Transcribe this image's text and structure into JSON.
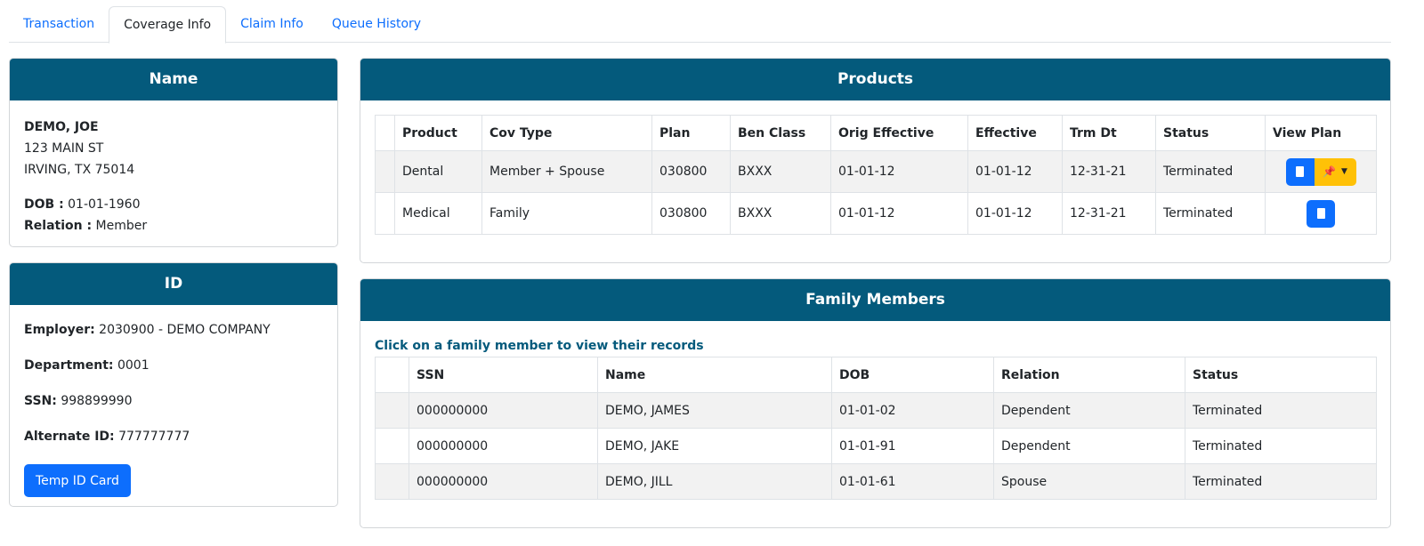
{
  "tabs": [
    "Transaction",
    "Coverage Info",
    "Claim Info",
    "Queue History"
  ],
  "active_tab": "Coverage Info",
  "name_card": {
    "title": "Name",
    "name": "DEMO, JOE",
    "address1": "123 MAIN ST",
    "address2": "IRVING, TX 75014",
    "dob_label": "DOB :",
    "dob": "01-01-1960",
    "relation_label": "Relation :",
    "relation": "Member"
  },
  "id_card": {
    "title": "ID",
    "fields": [
      {
        "label": "Employer:",
        "value": "2030900 - DEMO COMPANY"
      },
      {
        "label": "Department:",
        "value": "0001"
      },
      {
        "label": "SSN:",
        "value": "998899990"
      },
      {
        "label": "Alternate ID:",
        "value": "777777777"
      }
    ],
    "button": "Temp ID Card"
  },
  "products": {
    "title": "Products",
    "columns": [
      "Product",
      "Cov Type",
      "Plan",
      "Ben Class",
      "Orig Effective",
      "Effective",
      "Trm Dt",
      "Status",
      "View Plan"
    ],
    "rows": [
      [
        "Dental",
        "Member + Spouse",
        "030800",
        "BXXX",
        "01-01-12",
        "01-01-12",
        "12-31-21",
        "Terminated"
      ],
      [
        "Medical",
        "Family",
        "030800",
        "BXXX",
        "01-01-12",
        "01-01-12",
        "12-31-21",
        "Terminated"
      ]
    ]
  },
  "family": {
    "title": "Family Members",
    "note": "Click on a family member to view their records",
    "columns": [
      "SSN",
      "Name",
      "DOB",
      "Relation",
      "Status"
    ],
    "rows": [
      [
        "000000000",
        "DEMO, JAMES",
        "01-01-02",
        "Dependent",
        "Terminated"
      ],
      [
        "000000000",
        "DEMO, JAKE",
        "01-01-91",
        "Dependent",
        "Terminated"
      ],
      [
        "000000000",
        "DEMO, JILL",
        "01-01-61",
        "Spouse",
        "Terminated"
      ]
    ]
  },
  "colors": {
    "header": "#045a7c",
    "primary": "#0d6efd",
    "warning": "#ffc107"
  }
}
